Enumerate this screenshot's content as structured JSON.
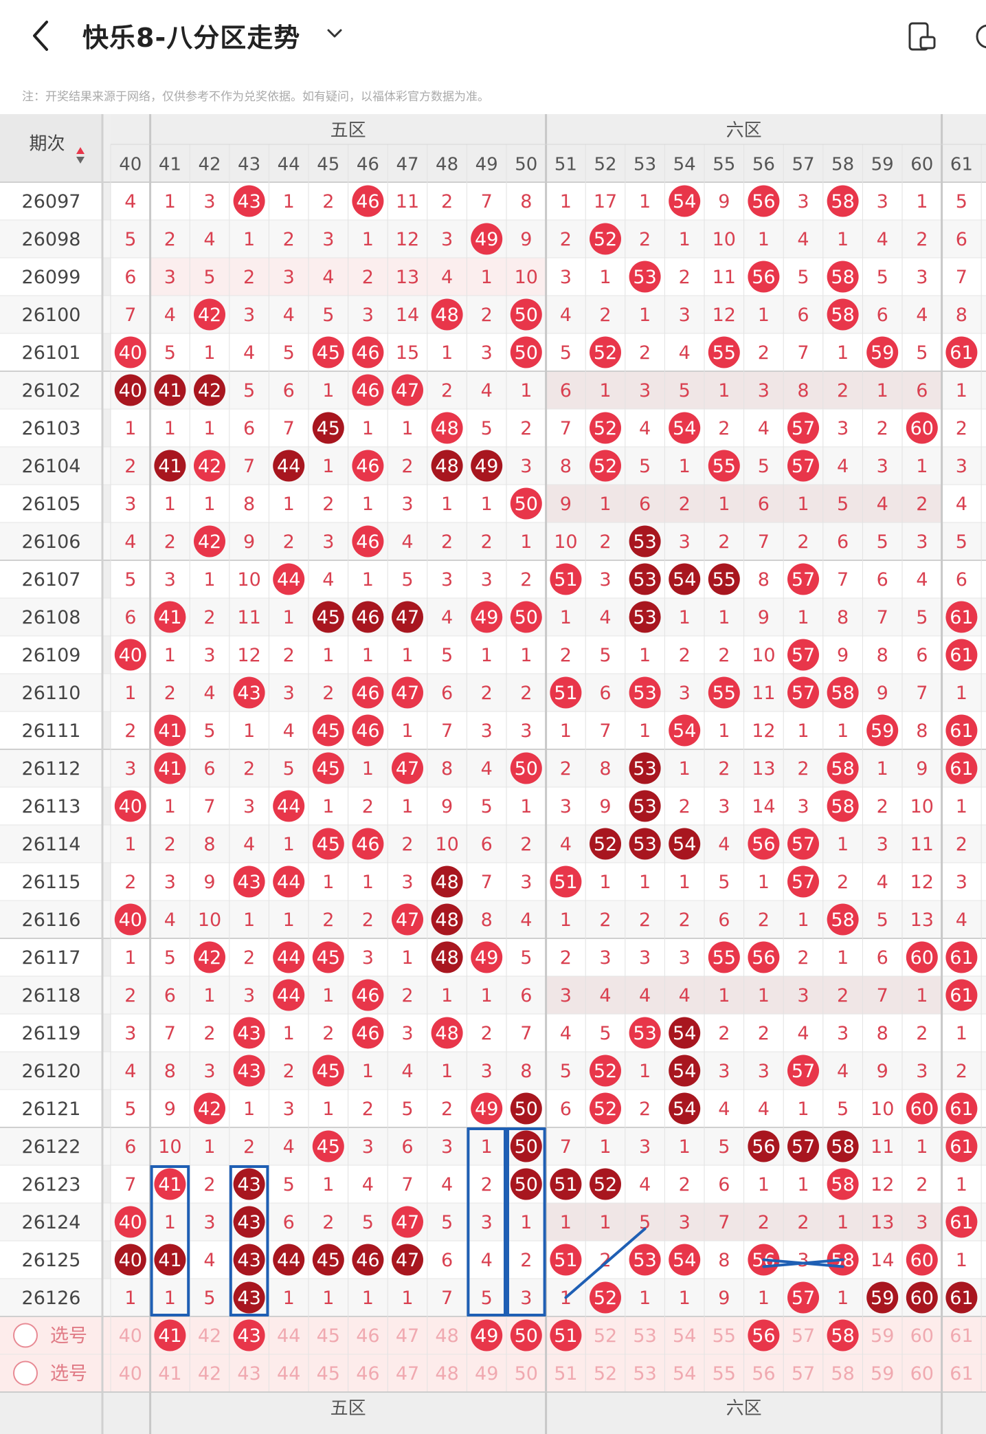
{
  "header": {
    "title": "快乐8-八分区走势"
  },
  "note": "注：开奖结果来源于网络，仅供参考不作为兑奖依据。如有疑问，以福体彩官方数据为准。",
  "zones": [
    "五区",
    "六区"
  ],
  "issue_header": "期次",
  "columns": [
    "40",
    "41",
    "42",
    "43",
    "44",
    "45",
    "46",
    "47",
    "48",
    "49",
    "50",
    "51",
    "52",
    "53",
    "54",
    "55",
    "56",
    "57",
    "58",
    "59",
    "60",
    "61"
  ],
  "rows": [
    {
      "issue": "26097",
      "cells": [
        "4",
        "1",
        "3",
        "43",
        "1",
        "2",
        "46",
        "11",
        "2",
        "7",
        "8",
        "1",
        "17",
        "1",
        "54",
        "9",
        "56",
        "3",
        "58",
        "3",
        "1",
        "5"
      ]
    },
    {
      "issue": "26098",
      "cells": [
        "5",
        "2",
        "4",
        "1",
        "2",
        "3",
        "1",
        "12",
        "3",
        "49",
        "9",
        "2",
        "52",
        "2",
        "1",
        "10",
        "1",
        "4",
        "1",
        "4",
        "2",
        "6"
      ]
    },
    {
      "issue": "26099",
      "cells": [
        "6",
        "3",
        "5",
        "2",
        "3",
        "4",
        "2",
        "13",
        "4",
        "1",
        "10",
        "3",
        "1",
        "53",
        "2",
        "11",
        "56",
        "5",
        "58",
        "5",
        "3",
        "7"
      ]
    },
    {
      "issue": "26100",
      "cells": [
        "7",
        "4",
        "42",
        "3",
        "4",
        "5",
        "3",
        "14",
        "48",
        "2",
        "50",
        "4",
        "2",
        "1",
        "3",
        "12",
        "1",
        "6",
        "58",
        "6",
        "4",
        "8"
      ]
    },
    {
      "issue": "26101",
      "cells": [
        "40",
        "5",
        "1",
        "4",
        "5",
        "45",
        "46",
        "15",
        "1",
        "3",
        "50",
        "5",
        "52",
        "2",
        "4",
        "55",
        "2",
        "7",
        "1",
        "59",
        "5",
        "61"
      ]
    },
    {
      "issue": "26102",
      "cells": [
        "40",
        "41",
        "42",
        "5",
        "6",
        "1",
        "46",
        "47",
        "2",
        "4",
        "1",
        "6",
        "1",
        "3",
        "5",
        "1",
        "3",
        "8",
        "2",
        "1",
        "6",
        "1"
      ]
    },
    {
      "issue": "26103",
      "cells": [
        "1",
        "1",
        "1",
        "6",
        "7",
        "45",
        "1",
        "1",
        "48",
        "5",
        "2",
        "7",
        "52",
        "4",
        "54",
        "2",
        "4",
        "57",
        "3",
        "2",
        "60",
        "2"
      ]
    },
    {
      "issue": "26104",
      "cells": [
        "2",
        "41",
        "42",
        "7",
        "44",
        "1",
        "46",
        "2",
        "48",
        "49",
        "3",
        "8",
        "52",
        "5",
        "1",
        "55",
        "5",
        "57",
        "4",
        "3",
        "1",
        "3"
      ]
    },
    {
      "issue": "26105",
      "cells": [
        "3",
        "1",
        "1",
        "8",
        "1",
        "2",
        "1",
        "3",
        "1",
        "1",
        "50",
        "9",
        "1",
        "6",
        "2",
        "1",
        "6",
        "1",
        "5",
        "4",
        "2",
        "4"
      ]
    },
    {
      "issue": "26106",
      "cells": [
        "4",
        "2",
        "42",
        "9",
        "2",
        "3",
        "46",
        "4",
        "2",
        "2",
        "1",
        "10",
        "2",
        "53",
        "3",
        "2",
        "7",
        "2",
        "6",
        "5",
        "3",
        "5"
      ]
    },
    {
      "issue": "26107",
      "cells": [
        "5",
        "3",
        "1",
        "10",
        "44",
        "4",
        "1",
        "5",
        "3",
        "3",
        "2",
        "51",
        "3",
        "53",
        "54",
        "55",
        "8",
        "57",
        "7",
        "6",
        "4",
        "6"
      ]
    },
    {
      "issue": "26108",
      "cells": [
        "6",
        "41",
        "2",
        "11",
        "1",
        "45",
        "46",
        "47",
        "4",
        "49",
        "50",
        "1",
        "4",
        "53",
        "1",
        "1",
        "9",
        "1",
        "8",
        "7",
        "5",
        "61"
      ]
    },
    {
      "issue": "26109",
      "cells": [
        "40",
        "1",
        "3",
        "12",
        "2",
        "1",
        "1",
        "1",
        "5",
        "1",
        "1",
        "2",
        "5",
        "1",
        "2",
        "2",
        "10",
        "57",
        "9",
        "8",
        "6",
        "61"
      ]
    },
    {
      "issue": "26110",
      "cells": [
        "1",
        "2",
        "4",
        "43",
        "3",
        "2",
        "46",
        "47",
        "6",
        "2",
        "2",
        "51",
        "6",
        "53",
        "3",
        "55",
        "11",
        "57",
        "58",
        "9",
        "7",
        "1"
      ]
    },
    {
      "issue": "26111",
      "cells": [
        "2",
        "41",
        "5",
        "1",
        "4",
        "45",
        "46",
        "1",
        "7",
        "3",
        "3",
        "1",
        "7",
        "1",
        "54",
        "1",
        "12",
        "1",
        "1",
        "59",
        "8",
        "61"
      ]
    },
    {
      "issue": "26112",
      "cells": [
        "3",
        "41",
        "6",
        "2",
        "5",
        "45",
        "1",
        "47",
        "8",
        "4",
        "50",
        "2",
        "8",
        "53",
        "1",
        "2",
        "13",
        "2",
        "58",
        "1",
        "9",
        "61"
      ]
    },
    {
      "issue": "26113",
      "cells": [
        "40",
        "1",
        "7",
        "3",
        "44",
        "1",
        "2",
        "1",
        "9",
        "5",
        "1",
        "3",
        "9",
        "53",
        "2",
        "3",
        "14",
        "3",
        "58",
        "2",
        "10",
        "1"
      ]
    },
    {
      "issue": "26114",
      "cells": [
        "1",
        "2",
        "8",
        "4",
        "1",
        "45",
        "46",
        "2",
        "10",
        "6",
        "2",
        "4",
        "52",
        "53",
        "54",
        "4",
        "56",
        "57",
        "1",
        "3",
        "11",
        "2"
      ]
    },
    {
      "issue": "26115",
      "cells": [
        "2",
        "3",
        "9",
        "43",
        "44",
        "1",
        "1",
        "3",
        "48",
        "7",
        "3",
        "51",
        "1",
        "1",
        "1",
        "5",
        "1",
        "57",
        "2",
        "4",
        "12",
        "3"
      ]
    },
    {
      "issue": "26116",
      "cells": [
        "40",
        "4",
        "10",
        "1",
        "1",
        "2",
        "2",
        "47",
        "48",
        "8",
        "4",
        "1",
        "2",
        "2",
        "2",
        "6",
        "2",
        "1",
        "58",
        "5",
        "13",
        "4"
      ]
    },
    {
      "issue": "26117",
      "cells": [
        "1",
        "5",
        "42",
        "2",
        "44",
        "45",
        "3",
        "1",
        "48",
        "49",
        "5",
        "2",
        "3",
        "3",
        "3",
        "55",
        "56",
        "2",
        "1",
        "6",
        "60",
        "61"
      ]
    },
    {
      "issue": "26118",
      "cells": [
        "2",
        "6",
        "1",
        "3",
        "44",
        "1",
        "46",
        "2",
        "1",
        "1",
        "6",
        "3",
        "4",
        "4",
        "4",
        "1",
        "1",
        "3",
        "2",
        "7",
        "1",
        "61"
      ]
    },
    {
      "issue": "26119",
      "cells": [
        "3",
        "7",
        "2",
        "43",
        "1",
        "2",
        "46",
        "3",
        "48",
        "2",
        "7",
        "4",
        "5",
        "53",
        "54",
        "2",
        "2",
        "4",
        "3",
        "8",
        "2",
        "1"
      ]
    },
    {
      "issue": "26120",
      "cells": [
        "4",
        "8",
        "3",
        "43",
        "2",
        "45",
        "1",
        "4",
        "1",
        "3",
        "8",
        "5",
        "52",
        "1",
        "54",
        "3",
        "3",
        "57",
        "4",
        "9",
        "3",
        "2"
      ]
    },
    {
      "issue": "26121",
      "cells": [
        "5",
        "9",
        "42",
        "1",
        "3",
        "1",
        "2",
        "5",
        "2",
        "49",
        "50",
        "6",
        "52",
        "2",
        "54",
        "4",
        "4",
        "1",
        "5",
        "10",
        "60",
        "61"
      ]
    },
    {
      "issue": "26122",
      "cells": [
        "6",
        "10",
        "1",
        "2",
        "4",
        "45",
        "3",
        "6",
        "3",
        "1",
        "50",
        "7",
        "1",
        "3",
        "1",
        "5",
        "56",
        "57",
        "58",
        "11",
        "1",
        "61"
      ]
    },
    {
      "issue": "26123",
      "cells": [
        "7",
        "41",
        "2",
        "43",
        "5",
        "1",
        "4",
        "7",
        "4",
        "2",
        "50",
        "51",
        "52",
        "4",
        "2",
        "6",
        "1",
        "1",
        "58",
        "12",
        "2",
        "1"
      ]
    },
    {
      "issue": "26124",
      "cells": [
        "40",
        "1",
        "3",
        "43",
        "6",
        "2",
        "5",
        "47",
        "5",
        "3",
        "1",
        "1",
        "1",
        "5",
        "3",
        "7",
        "2",
        "2",
        "1",
        "13",
        "3",
        "61"
      ]
    },
    {
      "issue": "26125",
      "cells": [
        "40",
        "41",
        "4",
        "43",
        "44",
        "45",
        "46",
        "47",
        "6",
        "4",
        "2",
        "51",
        "2",
        "53",
        "54",
        "8",
        "56",
        "3",
        "58",
        "14",
        "60",
        "1"
      ]
    },
    {
      "issue": "26126",
      "cells": [
        "1",
        "1",
        "5",
        "43",
        "1",
        "1",
        "1",
        "1",
        "7",
        "5",
        "3",
        "1",
        "52",
        "1",
        "1",
        "9",
        "1",
        "57",
        "1",
        "59",
        "60",
        "61"
      ]
    }
  ],
  "select_rows": [
    {
      "label": "选号",
      "cells": [
        "40",
        "41",
        "42",
        "43",
        "44",
        "45",
        "46",
        "47",
        "48",
        "49",
        "50",
        "51",
        "52",
        "53",
        "54",
        "55",
        "56",
        "57",
        "58",
        "59",
        "60",
        "61"
      ],
      "selected": [
        "41",
        "43",
        "49",
        "50",
        "51",
        "56",
        "58"
      ]
    },
    {
      "label": "选号",
      "cells": [
        "40",
        "41",
        "42",
        "43",
        "44",
        "45",
        "46",
        "47",
        "48",
        "49",
        "50",
        "51",
        "52",
        "53",
        "54",
        "55",
        "56",
        "57",
        "58",
        "59",
        "60",
        "61"
      ],
      "selected": []
    }
  ],
  "dark_balls": [
    "26102:40",
    "26102:41",
    "26102:42",
    "26103:45",
    "26104:41",
    "26104:44",
    "26104:48",
    "26104:49",
    "26106:53",
    "26107:53",
    "26107:54",
    "26107:55",
    "26108:45",
    "26108:46",
    "26108:47",
    "26108:53",
    "26112:53",
    "26113:53",
    "26114:52",
    "26114:53",
    "26114:54",
    "26115:48",
    "26116:48",
    "26117:48",
    "26119:54",
    "26120:54",
    "26121:50",
    "26121:54",
    "26122:50",
    "26122:56",
    "26122:57",
    "26122:58",
    "26123:43",
    "26123:50",
    "26123:51",
    "26123:52",
    "26124:43",
    "26125:40",
    "26125:41",
    "26125:43",
    "26125:44",
    "26125:45",
    "26125:46",
    "26125:47",
    "26126:43",
    "26126:59",
    "26126:60",
    "26126:61"
  ],
  "colors": {
    "ball_red": "#e8364a",
    "ball_dark": "#a8161f",
    "number_red": "#d94050",
    "line_blue": "#1f5fb4",
    "select_bg": "#fdeceb"
  }
}
